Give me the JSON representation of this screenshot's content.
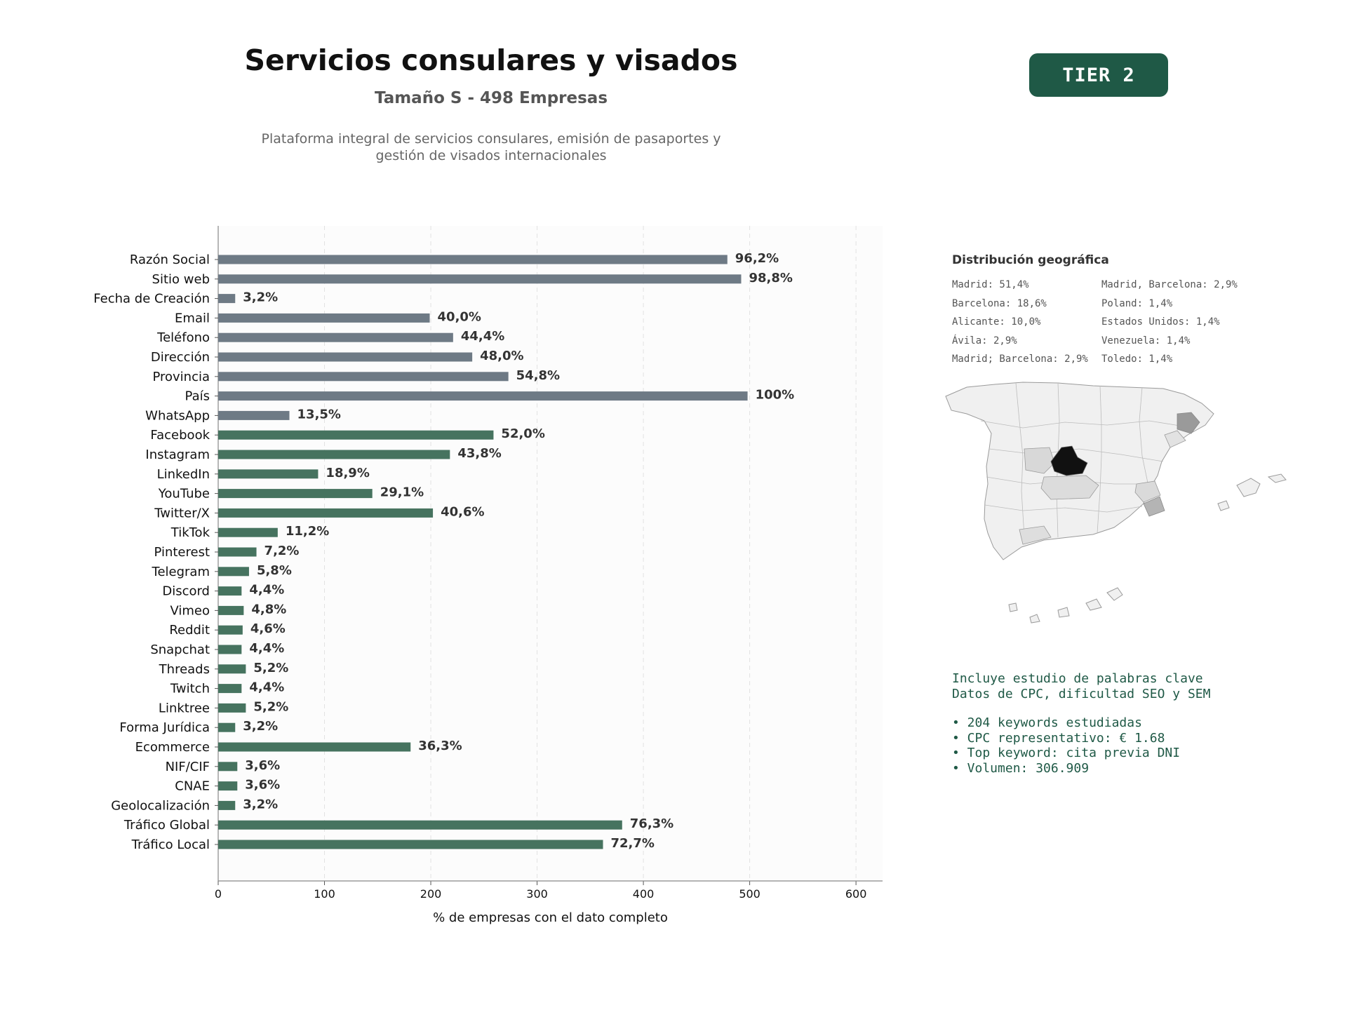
{
  "header": {
    "title": "Servicios consulares y visados",
    "subtitle": "Tamaño S - 498 Empresas",
    "description_line1": "Plataforma integral de servicios consulares, emisión de pasaportes y",
    "description_line2": "gestión de visados internacionales",
    "tier": "TIER 2"
  },
  "chart_data": {
    "type": "bar",
    "orientation": "horizontal",
    "xlabel": "% de empresas con el dato completo",
    "xlim": [
      0,
      625
    ],
    "xticks": [
      0,
      100,
      200,
      300,
      400,
      500,
      600
    ],
    "grid": "vertical dashed",
    "colors": {
      "basic": "#6e7a85",
      "digital": "#46735f"
    },
    "categories": [
      "Razón Social",
      "Sitio web",
      "Fecha de Creación",
      "Email",
      "Teléfono",
      "Dirección",
      "Provincia",
      "País",
      "WhatsApp",
      "Facebook",
      "Instagram",
      "LinkedIn",
      "YouTube",
      "Twitter/X",
      "TikTok",
      "Pinterest",
      "Telegram",
      "Discord",
      "Vimeo",
      "Reddit",
      "Snapchat",
      "Threads",
      "Twitch",
      "Linktree",
      "Forma Jurídica",
      "Ecommerce",
      "NIF/CIF",
      "CNAE",
      "Geolocalización",
      "Tráfico Global",
      "Tráfico Local"
    ],
    "values": [
      479,
      492,
      16,
      199,
      221,
      239,
      273,
      498,
      67,
      259,
      218,
      94,
      145,
      202,
      56,
      36,
      29,
      22,
      24,
      23,
      22,
      26,
      22,
      26,
      16,
      181,
      18,
      18,
      16,
      380,
      362
    ],
    "labels": [
      "96,2%",
      "98,8%",
      "3,2%",
      "40,0%",
      "44,4%",
      "48,0%",
      "54,8%",
      "100%",
      "13,5%",
      "52,0%",
      "43,8%",
      "18,9%",
      "29,1%",
      "40,6%",
      "11,2%",
      "7,2%",
      "5,8%",
      "4,4%",
      "4,8%",
      "4,6%",
      "4,4%",
      "5,2%",
      "4,4%",
      "5,2%",
      "3,2%",
      "36,3%",
      "3,6%",
      "3,6%",
      "3,2%",
      "76,3%",
      "72,7%"
    ],
    "groups": [
      "basic",
      "basic",
      "basic",
      "basic",
      "basic",
      "basic",
      "basic",
      "basic",
      "basic",
      "digital",
      "digital",
      "digital",
      "digital",
      "digital",
      "digital",
      "digital",
      "digital",
      "digital",
      "digital",
      "digital",
      "digital",
      "digital",
      "digital",
      "digital",
      "digital",
      "digital",
      "digital",
      "digital",
      "digital",
      "digital",
      "digital"
    ]
  },
  "geo": {
    "title": "Distribución geográfica",
    "items": [
      "Madrid: 51,4%",
      "Barcelona: 18,6%",
      "Alicante: 10,0%",
      "Ávila: 2,9%",
      "Madrid; Barcelona: 2,9%",
      "Madrid, Barcelona: 2,9%",
      "Poland: 1,4%",
      "Estados Unidos: 1,4%",
      "Venezuela: 1,4%",
      "Toledo: 1,4%"
    ]
  },
  "info": {
    "line1": "Incluye estudio de palabras clave",
    "line2": "Datos de CPC, dificultad SEO y SEM",
    "bullets": [
      "• 204 keywords estudiadas",
      "• CPC representativo: € 1.68",
      "• Top keyword: cita previa DNI",
      "• Volumen: 306.909"
    ]
  }
}
